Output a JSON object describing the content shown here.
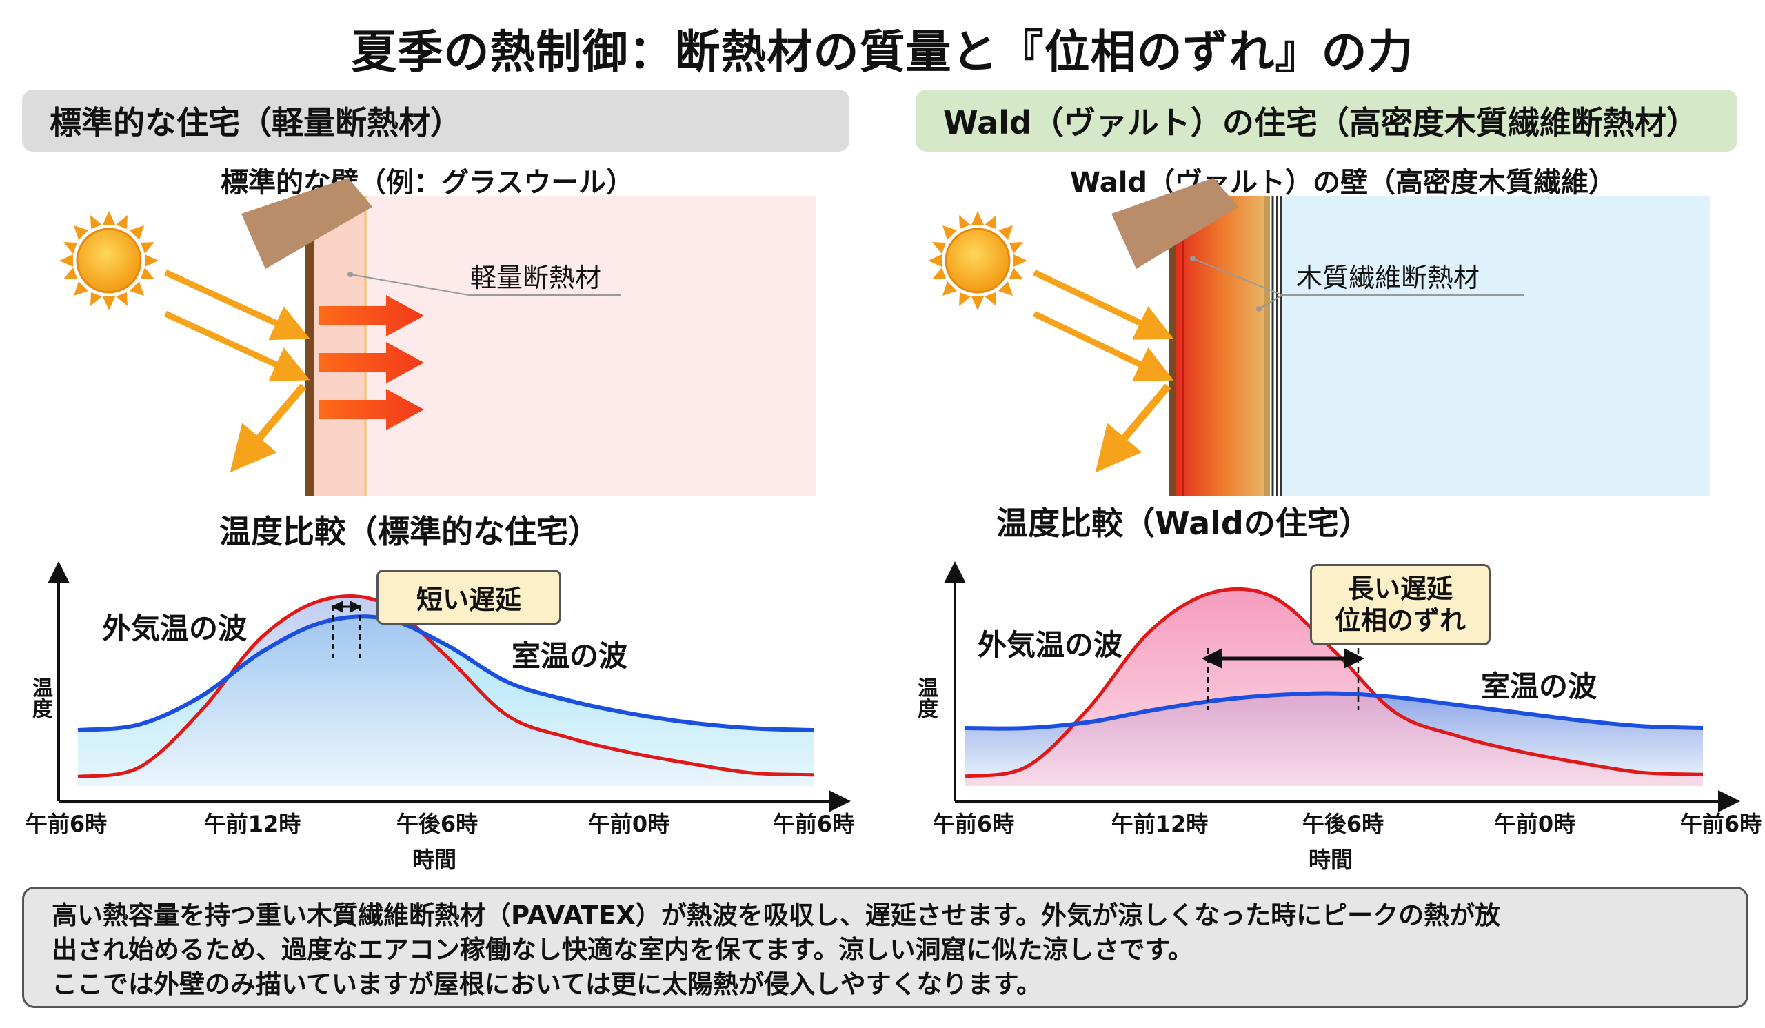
{
  "title": "夏季の熱制御：断熱材の質量と『位相のずれ』の力",
  "left": {
    "header": "標準的な住宅（軽量断熱材）",
    "wall_title": "標準的な壁（例：グラスウール）",
    "insulation_label": "軽量断熱材",
    "chart_title": "温度比較（標準的な住宅）",
    "outdoor_wave": "外気温の波",
    "indoor_wave": "室温の波",
    "callout": [
      "短い遅延"
    ]
  },
  "right": {
    "header": "Wald（ヴァルト）の住宅（高密度木質繊維断熱材）",
    "wall_title": "Wald（ヴァルト）の壁（高密度木質繊維）",
    "insulation_label": "木質繊維断熱材",
    "chart_title": "温度比較（Waldの住宅）",
    "outdoor_wave": "外気温の波",
    "indoor_wave": "室温の波",
    "callout": [
      "長い遅延",
      "位相のずれ"
    ]
  },
  "axis": {
    "ylabel": "温度",
    "xlabel": "時間",
    "ticks": [
      "午前6時",
      "午前12時",
      "午後6時",
      "午前0時",
      "午前6時"
    ]
  },
  "note": [
    "高い熱容量を持つ重い木質繊維断熱材（PAVATEX）が熱波を吸収し、遅延させます。外気が涼しくなった時にピークの熱が放",
    "出され始めるため、過度なエアコン稼働なし快適な室内を保てます。涼しい洞窟に似た涼しさです。",
    "ここでは外壁のみ描いていますが屋根においては更に太陽熱が侵入しやすくなります。"
  ],
  "colors": {
    "outdoor_line": "#e01818",
    "indoor_line": "#1a4fe0",
    "left_room": "#fdeaea",
    "right_room": "#dff2fc",
    "header_left": "#dcdcdc",
    "header_right": "#d5e8c8",
    "callout_bg": "#fbf0c8",
    "sun": "#f7a21b"
  },
  "chart_data": [
    {
      "type": "line",
      "title": "温度比較（標準的な住宅）",
      "xlabel": "時間",
      "ylabel": "温度",
      "x_ticks": [
        "午前6時",
        "午前12時",
        "午後6時",
        "午前0時",
        "午前6時"
      ],
      "x": [
        0,
        2,
        4,
        6,
        8,
        10,
        12,
        14,
        16,
        18,
        20,
        22,
        24
      ],
      "series": [
        {
          "name": "外気温の波",
          "values": [
            0.05,
            0.1,
            0.4,
            0.8,
            1.0,
            0.98,
            0.7,
            0.38,
            0.26,
            0.18,
            0.12,
            0.07,
            0.06
          ]
        },
        {
          "name": "室温の波",
          "values": [
            0.3,
            0.33,
            0.48,
            0.72,
            0.88,
            0.9,
            0.76,
            0.56,
            0.46,
            0.39,
            0.34,
            0.31,
            0.3
          ]
        }
      ],
      "annotations": [
        "短い遅延"
      ]
    },
    {
      "type": "line",
      "title": "温度比較（Waldの住宅）",
      "xlabel": "時間",
      "ylabel": "温度",
      "x_ticks": [
        "午前6時",
        "午前12時",
        "午後6時",
        "午前0時",
        "午前6時"
      ],
      "x": [
        0,
        2,
        4,
        6,
        8,
        10,
        12,
        14,
        16,
        18,
        20,
        22,
        24
      ],
      "series": [
        {
          "name": "外気温の波",
          "values": [
            0.05,
            0.1,
            0.4,
            0.8,
            1.0,
            0.98,
            0.7,
            0.38,
            0.26,
            0.18,
            0.12,
            0.07,
            0.06
          ]
        },
        {
          "name": "室温の波",
          "values": [
            0.3,
            0.3,
            0.33,
            0.39,
            0.44,
            0.47,
            0.48,
            0.46,
            0.42,
            0.38,
            0.34,
            0.31,
            0.3
          ]
        }
      ],
      "annotations": [
        "長い遅延",
        "位相のずれ"
      ]
    }
  ]
}
